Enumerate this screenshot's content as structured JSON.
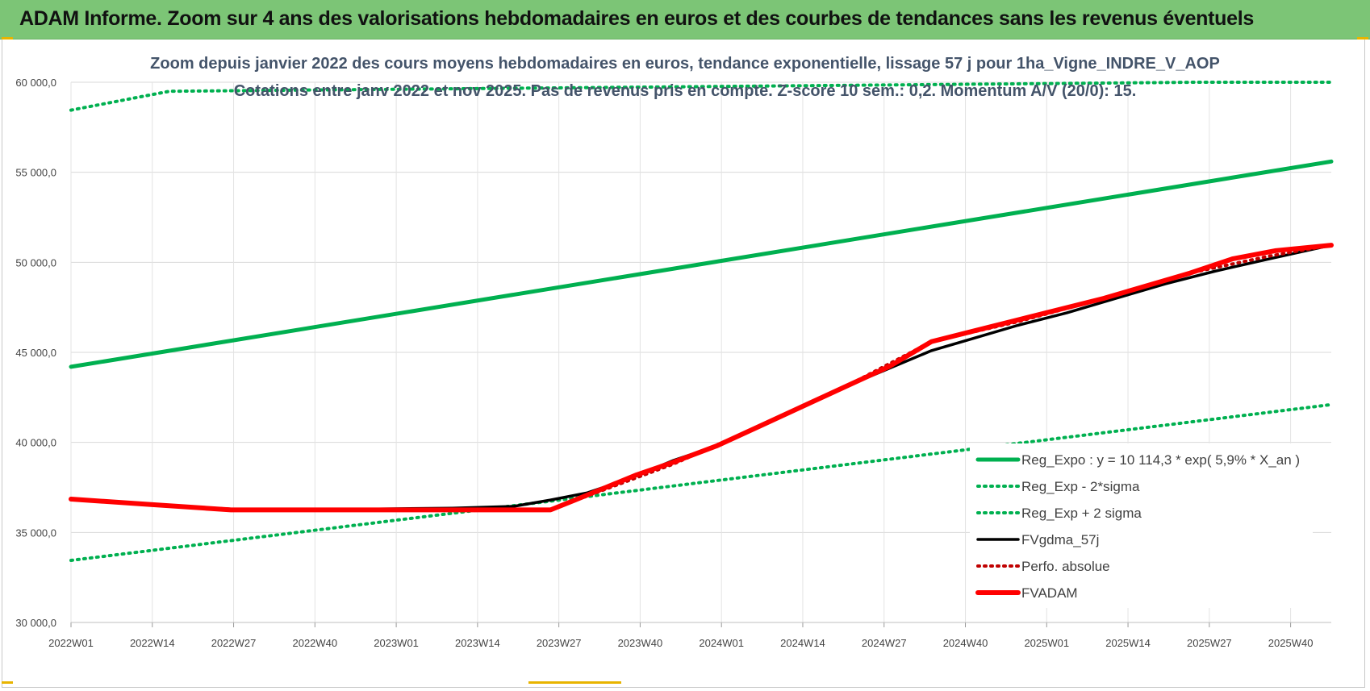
{
  "banner": {
    "title": "ADAM Informe. Zoom sur 4 ans des valorisations hebdomadaires en euros et des courbes de tendances sans les revenus éventuels"
  },
  "colors": {
    "banner_bg": "#7cc576",
    "green": "#00b050",
    "black": "#000000",
    "red": "#ff0000",
    "title_text": "#44546a"
  },
  "chart_data": {
    "type": "line",
    "title_line1": "Zoom depuis janvier 2022 des cours moyens hebdomadaires en euros, tendance exponentielle, lissage 57 j pour 1ha_Vigne_INDRE_V_AOP",
    "title_line2": "Cotations entre janv 2022 et nov 2025. Pas de revenus pris en compte. Z-score 10 sem.: 0,2. Momentum A/V (20/0): 15.",
    "ylim": [
      30000,
      60000
    ],
    "y_ticks": [
      "30 000,0",
      "35 000,0",
      "40 000,0",
      "45 000,0",
      "50 000,0",
      "55 000,0",
      "60 000,0"
    ],
    "x_tick_labels": [
      "2022W01",
      "2022W14",
      "2022W27",
      "2022W40",
      "2023W01",
      "2023W14",
      "2023W27",
      "2023W40",
      "2024W01",
      "2024W14",
      "2024W27",
      "2024W40",
      "2025W01",
      "2025W14",
      "2025W27",
      "2025W40"
    ],
    "x_range_weeks": [
      0,
      205
    ],
    "grid": true,
    "legend_position": "right",
    "series": [
      {
        "name": "Reg_Expo : y = 10 114,3 * exp( 5,9% *  X_an )",
        "color": "#00b050",
        "style": "solid",
        "points": [
          [
            0,
            44200
          ],
          [
            205,
            55600
          ]
        ]
      },
      {
        "name": "Reg_Exp - 2*sigma",
        "color": "#00b050",
        "style": "dotted",
        "points": [
          [
            0,
            33450
          ],
          [
            205,
            42100
          ]
        ]
      },
      {
        "name": "Reg_Exp + 2 sigma",
        "color": "#00b050",
        "style": "dotted",
        "points": [
          [
            0,
            58450
          ],
          [
            16,
            59500
          ],
          [
            183,
            60000
          ],
          [
            205,
            60000
          ]
        ]
      },
      {
        "name": "FVgdma_57j",
        "color": "#000000",
        "style": "solid",
        "points": [
          [
            0,
            36850
          ],
          [
            13,
            36550
          ],
          [
            26,
            36300
          ],
          [
            45,
            36280
          ],
          [
            62,
            36350
          ],
          [
            72,
            36450
          ],
          [
            78,
            36800
          ],
          [
            84,
            37200
          ],
          [
            91,
            38000
          ],
          [
            98,
            39000
          ],
          [
            105,
            39800
          ],
          [
            112,
            40900
          ],
          [
            119,
            42000
          ],
          [
            126,
            43100
          ],
          [
            133,
            44100
          ],
          [
            140,
            45100
          ],
          [
            146,
            45700
          ],
          [
            154,
            46500
          ],
          [
            162,
            47200
          ],
          [
            170,
            48000
          ],
          [
            178,
            48800
          ],
          [
            186,
            49500
          ],
          [
            195,
            50200
          ],
          [
            205,
            50950
          ]
        ]
      },
      {
        "name": "Perfo. absolue",
        "color": "#c00000",
        "style": "dotted",
        "points": [
          [
            0,
            36850
          ],
          [
            26,
            36250
          ],
          [
            78,
            36250
          ],
          [
            83,
            36900
          ],
          [
            98,
            38800
          ],
          [
            112,
            40900
          ],
          [
            126,
            43100
          ],
          [
            140,
            45600
          ],
          [
            154,
            46700
          ],
          [
            168,
            48000
          ],
          [
            182,
            49400
          ],
          [
            195,
            50350
          ],
          [
            205,
            50950
          ]
        ]
      },
      {
        "name": "FVADAM",
        "color": "#ff0000",
        "style": "solid",
        "points": [
          [
            0,
            36850
          ],
          [
            13,
            36550
          ],
          [
            26,
            36250
          ],
          [
            52,
            36250
          ],
          [
            78,
            36250
          ],
          [
            82,
            36800
          ],
          [
            87,
            37500
          ],
          [
            92,
            38200
          ],
          [
            98,
            38900
          ],
          [
            105,
            39800
          ],
          [
            112,
            40900
          ],
          [
            119,
            42000
          ],
          [
            126,
            43100
          ],
          [
            133,
            44200
          ],
          [
            140,
            45600
          ],
          [
            147,
            46200
          ],
          [
            154,
            46800
          ],
          [
            161,
            47400
          ],
          [
            168,
            48000
          ],
          [
            175,
            48700
          ],
          [
            182,
            49400
          ],
          [
            189,
            50200
          ],
          [
            196,
            50650
          ],
          [
            205,
            50950
          ]
        ]
      }
    ]
  }
}
